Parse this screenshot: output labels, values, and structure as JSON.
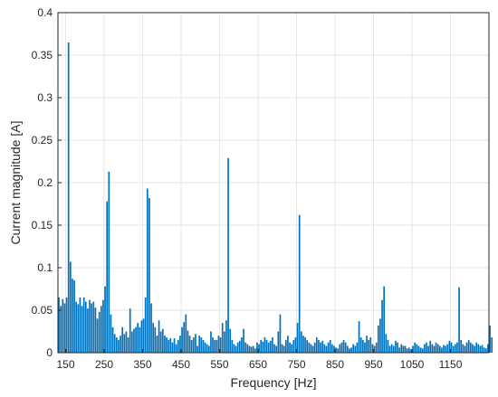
{
  "chart_data": {
    "type": "bar",
    "title": "",
    "xlabel": "Frequency [Hz]",
    "ylabel": "Current magnitude [A]",
    "xlim": [
      130,
      1250
    ],
    "ylim": [
      0,
      0.4
    ],
    "grid": true,
    "bar_color": "#0072BD",
    "x_ticks": [
      150,
      250,
      350,
      450,
      550,
      650,
      750,
      850,
      950,
      1050,
      1150
    ],
    "x_tick_labels": [
      "150",
      "250",
      "350",
      "450",
      "550",
      "650",
      "750",
      "850",
      "950",
      "1050",
      "1150"
    ],
    "y_ticks": [
      0,
      0.05,
      0.1,
      0.15,
      0.2,
      0.25,
      0.3,
      0.35,
      0.4
    ],
    "y_tick_labels": [
      "0",
      "0.05",
      "0.1",
      "0.15",
      "0.2",
      "0.25",
      "0.3",
      "0.35",
      "0.4"
    ],
    "x_start": 130,
    "x_step": 5,
    "values": [
      0.065,
      0.055,
      0.063,
      0.058,
      0.065,
      0.365,
      0.107,
      0.087,
      0.085,
      0.06,
      0.057,
      0.065,
      0.055,
      0.065,
      0.06,
      0.052,
      0.062,
      0.058,
      0.06,
      0.053,
      0.04,
      0.048,
      0.055,
      0.062,
      0.078,
      0.178,
      0.213,
      0.045,
      0.03,
      0.022,
      0.018,
      0.015,
      0.02,
      0.03,
      0.022,
      0.025,
      0.018,
      0.052,
      0.025,
      0.028,
      0.03,
      0.035,
      0.03,
      0.038,
      0.04,
      0.065,
      0.193,
      0.182,
      0.058,
      0.035,
      0.03,
      0.02,
      0.038,
      0.025,
      0.028,
      0.02,
      0.018,
      0.015,
      0.017,
      0.012,
      0.017,
      0.01,
      0.015,
      0.02,
      0.03,
      0.036,
      0.045,
      0.026,
      0.02,
      0.015,
      0.018,
      0.022,
      0.008,
      0.02,
      0.018,
      0.015,
      0.012,
      0.01,
      0.008,
      0.025,
      0.018,
      0.015,
      0.015,
      0.02,
      0.018,
      0.035,
      0.025,
      0.038,
      0.229,
      0.028,
      0.015,
      0.01,
      0.008,
      0.012,
      0.014,
      0.018,
      0.028,
      0.012,
      0.01,
      0.008,
      0.007,
      0.008,
      0.005,
      0.012,
      0.01,
      0.015,
      0.013,
      0.018,
      0.015,
      0.012,
      0.014,
      0.018,
      0.01,
      0.008,
      0.025,
      0.045,
      0.01,
      0.008,
      0.015,
      0.02,
      0.012,
      0.01,
      0.015,
      0.018,
      0.035,
      0.162,
      0.025,
      0.02,
      0.018,
      0.015,
      0.012,
      0.01,
      0.008,
      0.012,
      0.018,
      0.015,
      0.012,
      0.014,
      0.01,
      0.008,
      0.012,
      0.015,
      0.01,
      0.008,
      0.006,
      0.005,
      0.01,
      0.012,
      0.015,
      0.012,
      0.008,
      0.005,
      0.006,
      0.01,
      0.008,
      0.012,
      0.037,
      0.018,
      0.015,
      0.012,
      0.02,
      0.015,
      0.018,
      0.01,
      0.008,
      0.012,
      0.032,
      0.04,
      0.062,
      0.078,
      0.022,
      0.015,
      0.008,
      0.01,
      0.008,
      0.014,
      0.012,
      0.006,
      0.01,
      0.008,
      0.008,
      0.005,
      0.006,
      0.004,
      0.008,
      0.012,
      0.01,
      0.008,
      0.006,
      0.005,
      0.01,
      0.012,
      0.008,
      0.014,
      0.01,
      0.008,
      0.012,
      0.01,
      0.008,
      0.006,
      0.009,
      0.008,
      0.01,
      0.014,
      0.012,
      0.008,
      0.01,
      0.012,
      0.077,
      0.015,
      0.01,
      0.008,
      0.012,
      0.015,
      0.012,
      0.01,
      0.008,
      0.012,
      0.01,
      0.008,
      0.009,
      0.006,
      0.005,
      0.01,
      0.032,
      0.018
    ]
  }
}
